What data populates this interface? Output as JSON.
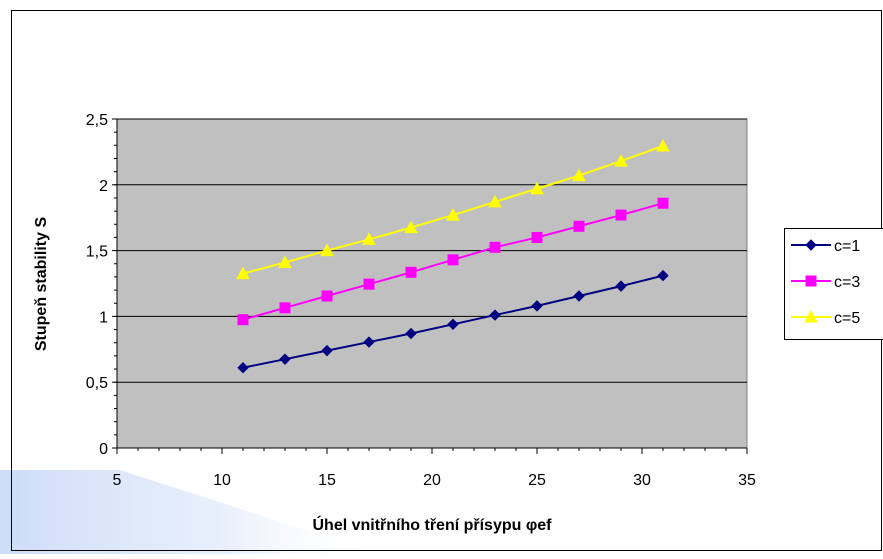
{
  "chart_data": {
    "type": "line",
    "title": "",
    "xlabel": "Úhel vnitřního tření přísypu φef",
    "ylabel": "Stupeň stability S",
    "xlim": [
      5,
      35
    ],
    "ylim": [
      0,
      2.5
    ],
    "x_ticks": [
      "5",
      "10",
      "15",
      "20",
      "25",
      "30",
      "35"
    ],
    "y_ticks": [
      "0",
      "0,5",
      "1",
      "1,5",
      "2",
      "2,5"
    ],
    "grid": "horizontal",
    "plot_background": "#c0c0c0",
    "legend_position": "right",
    "x": [
      11,
      13,
      15,
      17,
      19,
      21,
      23,
      25,
      27,
      29,
      31
    ],
    "series": [
      {
        "name": "c=1",
        "color": "#000080",
        "marker": "diamond",
        "values": [
          0.61,
          0.675,
          0.74,
          0.805,
          0.87,
          0.94,
          1.01,
          1.08,
          1.155,
          1.23,
          1.31
        ]
      },
      {
        "name": "c=3",
        "color": "#ff00ff",
        "marker": "square",
        "values": [
          0.975,
          1.065,
          1.155,
          1.245,
          1.335,
          1.43,
          1.525,
          1.6,
          1.685,
          1.77,
          1.86
        ]
      },
      {
        "name": "c=5",
        "color": "#ffff00",
        "marker": "triangle",
        "values": [
          1.325,
          1.41,
          1.5,
          1.585,
          1.675,
          1.77,
          1.87,
          1.97,
          2.07,
          2.18,
          2.295
        ]
      }
    ]
  }
}
